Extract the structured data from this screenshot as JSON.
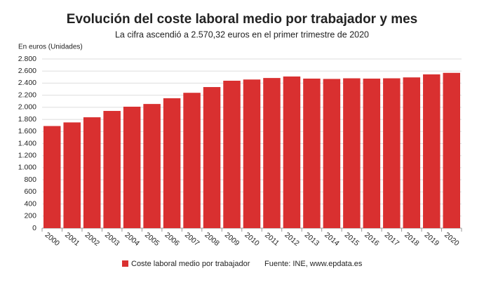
{
  "chart_data": {
    "type": "bar",
    "title": "Evolución del coste laboral medio por trabajador y mes",
    "subtitle": "La cifra ascendió a 2.570,32 euros en el primer trimestre de 2020",
    "y_axis_label": "En euros (Unidades)",
    "source": "Fuente: INE, www.epdata.es",
    "categories": [
      "2000",
      "2001",
      "2002",
      "2003",
      "2004",
      "2005",
      "2006",
      "2007",
      "2008",
      "2009",
      "2010",
      "2011",
      "2012",
      "2013",
      "2014",
      "2015",
      "2016",
      "2017",
      "2018",
      "2019",
      "2020"
    ],
    "series": [
      {
        "name": "Coste laboral medio por trabajador",
        "color": "#d93030",
        "values": [
          1690,
          1750,
          1835,
          1940,
          2010,
          2055,
          2150,
          2240,
          2335,
          2440,
          2460,
          2485,
          2510,
          2475,
          2470,
          2480,
          2475,
          2480,
          2495,
          2545,
          2570.32
        ]
      }
    ],
    "ylim": [
      0,
      2800
    ],
    "yticks": [
      0,
      200,
      400,
      600,
      800,
      {
        "value": 1000,
        "label": "1.000"
      },
      {
        "value": 1200,
        "label": "1.200"
      },
      {
        "value": 1400,
        "label": "1.400"
      },
      {
        "value": 1600,
        "label": "1.600"
      },
      {
        "value": 1800,
        "label": "1.800"
      },
      {
        "value": 2000,
        "label": "2.000"
      },
      {
        "value": 2200,
        "label": "2.200"
      },
      {
        "value": 2400,
        "label": "2.400"
      },
      {
        "value": 2600,
        "label": "2.600"
      },
      {
        "value": 2800,
        "label": "2.800"
      }
    ],
    "grid": true
  }
}
